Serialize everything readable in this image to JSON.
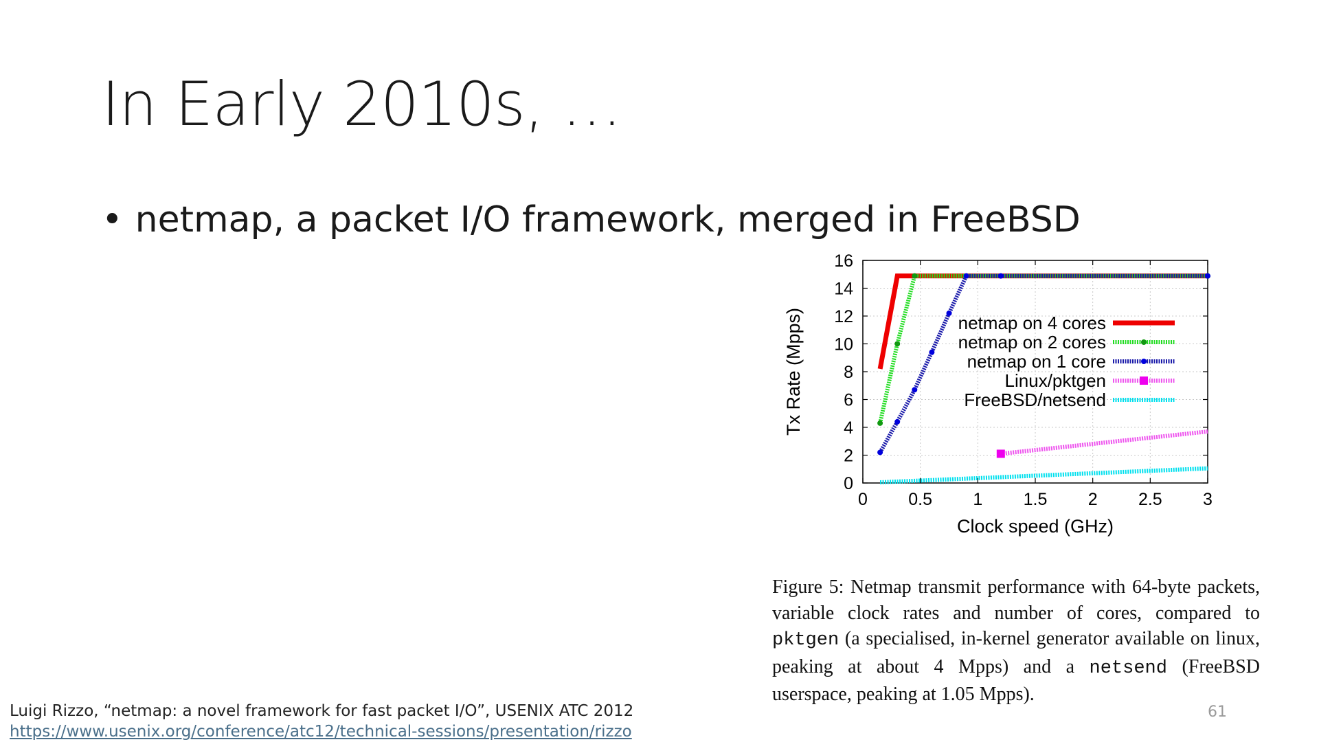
{
  "slide": {
    "title": "In Early 2010s, …",
    "bullet": "netmap, a packet I/O framework, merged in FreeBSD",
    "bullet_marker": "•",
    "page_number": "61"
  },
  "caption": {
    "part1": "Figure 5:  Netmap transmit performance with 64-byte packets, variable clock rates and number of cores, compared to ",
    "code1": "pktgen",
    "part2": " (a specialised, in-kernel generator available on linux, peaking at about 4 Mpps) and a ",
    "code2": "netsend",
    "part3": " (FreeBSD userspace, peaking at 1.05 Mpps)."
  },
  "citation": {
    "text": "Luigi Rizzo, “netmap: a novel framework for fast packet I/O”, USENIX ATC 2012",
    "link": "https://www.usenix.org/conference/atc12/technical-sessions/presentation/rizzo"
  },
  "chart_data": {
    "type": "line",
    "xlabel": "Clock speed (GHz)",
    "ylabel": "Tx Rate (Mpps)",
    "xlim": [
      0,
      3
    ],
    "ylim": [
      0,
      16
    ],
    "xticks": [
      0,
      0.5,
      1,
      1.5,
      2,
      2.5,
      3
    ],
    "xtick_labels": [
      "0",
      "0.5",
      "1",
      "1.5",
      "2",
      "2.5",
      "3"
    ],
    "yticks": [
      0,
      2,
      4,
      6,
      8,
      10,
      12,
      14,
      16
    ],
    "ytick_labels": [
      "0",
      "2",
      "4",
      "6",
      "8",
      "10",
      "12",
      "14",
      "16"
    ],
    "grid": true,
    "legend_position": "center-right",
    "series": [
      {
        "name": "netmap on 4 cores",
        "color": "#ee0000",
        "style": "solid",
        "x": [
          0.15,
          0.3,
          3.0
        ],
        "y": [
          8.2,
          14.88,
          14.88
        ]
      },
      {
        "name": "netmap on 2 cores",
        "color": "#22dd22",
        "style": "dotted",
        "marker": "dot",
        "x": [
          0.15,
          0.3,
          0.45,
          3.0
        ],
        "y": [
          4.3,
          10.0,
          14.88,
          14.88
        ]
      },
      {
        "name": "netmap on 1 core",
        "color": "#1a1aaa",
        "style": "dotted",
        "marker": "dot",
        "x": [
          0.15,
          0.3,
          0.45,
          0.6,
          0.75,
          0.9,
          1.2,
          3.0
        ],
        "y": [
          2.2,
          4.4,
          6.7,
          9.4,
          12.2,
          14.88,
          14.88,
          14.88
        ]
      },
      {
        "name": "Linux/pktgen",
        "color": "#ee55ee",
        "style": "dotted",
        "marker": "square",
        "x": [
          1.2,
          3.0
        ],
        "y": [
          2.1,
          3.7
        ]
      },
      {
        "name": "FreeBSD/netsend",
        "color": "#00e0ee",
        "style": "dotted",
        "x": [
          0.15,
          3.0
        ],
        "y": [
          0.05,
          1.05
        ]
      }
    ]
  }
}
